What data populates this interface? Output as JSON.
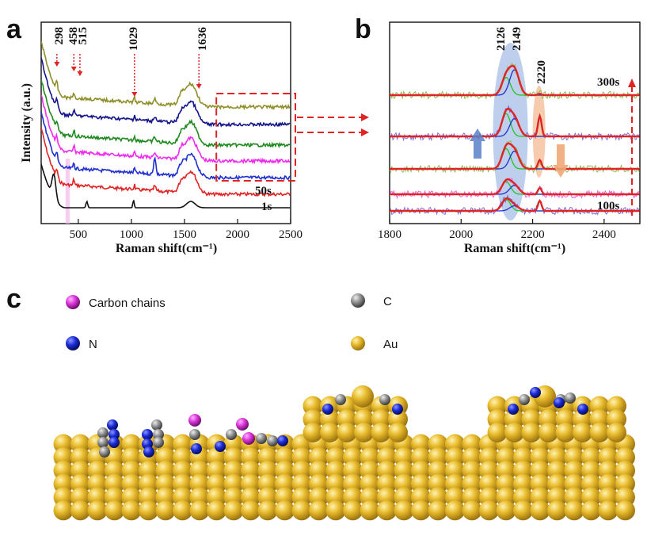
{
  "chart_data": [
    {
      "panel": "a",
      "type": "line",
      "xlabel": "Raman shift(cm⁻¹)",
      "ylabel": "Intensity (a.u.)",
      "xlim": [
        150,
        2500
      ],
      "xticks": [
        "500",
        "1000",
        "1500",
        "2000",
        "2500"
      ],
      "xtick_values": [
        500,
        1000,
        1500,
        2000,
        2500
      ],
      "peak_labels": [
        "298",
        "458",
        "515",
        "1029",
        "1636"
      ],
      "peak_positions": [
        298,
        458,
        515,
        1029,
        1636
      ],
      "series_labels": [
        {
          "text": "50s",
          "series": "red"
        },
        {
          "text": "1s",
          "series": "black"
        }
      ],
      "series": [
        {
          "name": "1s",
          "color": "#111111",
          "offset": 0
        },
        {
          "name": "red",
          "color": "#e02424",
          "offset": 1
        },
        {
          "name": "blue",
          "color": "#1f2fd0",
          "offset": 2
        },
        {
          "name": "magenta",
          "color": "#ee2bee",
          "offset": 3
        },
        {
          "name": "green",
          "color": "#1f8a1f",
          "offset": 4
        },
        {
          "name": "navy",
          "color": "#14148a",
          "offset": 5
        },
        {
          "name": "olive",
          "color": "#8f8f2a",
          "offset": 6
        }
      ],
      "highlight_band": [
        380,
        420
      ],
      "selection_box_x": [
        1800,
        2500
      ]
    },
    {
      "panel": "b",
      "type": "line",
      "xlabel": "Raman shift(cm⁻¹)",
      "xlim": [
        1800,
        2500
      ],
      "xticks": [
        "1800",
        "2000",
        "2200",
        "2400"
      ],
      "xtick_values": [
        1800,
        2000,
        2200,
        2400
      ],
      "peak_labels": [
        "2126",
        "2149",
        "2220"
      ],
      "peak_positions": [
        2126,
        2149,
        2220
      ],
      "series_labels": [
        {
          "text": "300s",
          "series": "top"
        },
        {
          "text": "100s",
          "series": "bottom"
        }
      ],
      "series": [
        {
          "name": "300s",
          "noise_color": "#8fbf5a",
          "peaks": {
            "2126": 0.7,
            "2149": 1.0,
            "2220": 0.05
          }
        },
        {
          "name": "trace-2",
          "noise_color": "#7b6fd6",
          "peaks": {
            "2126": 0.9,
            "2149": 0.7,
            "2220": 0.8
          }
        },
        {
          "name": "trace-3",
          "noise_color": "#8fbf5a",
          "peaks": {
            "2126": 0.8,
            "2149": 0.7,
            "2220": 0.35
          }
        },
        {
          "name": "trace-4",
          "noise_color": "#e860e0",
          "peaks": {
            "2126": 0.5,
            "2149": 0.35,
            "2220": 0.25
          }
        },
        {
          "name": "100s",
          "noise_color": "#7b6fd6",
          "peaks": {
            "2126": 0.45,
            "2149": 0.2,
            "2220": 0.4
          }
        }
      ],
      "fit_colors": {
        "total": "#e02424",
        "peak_2126": "#22c422",
        "peak_2149": "#1f2fd0"
      },
      "arrows": [
        {
          "meaning": "2149 increase",
          "color": "#5a80c8"
        },
        {
          "meaning": "2220 decrease",
          "color": "#f0a878"
        }
      ]
    }
  ],
  "panel_c": {
    "letter": "c",
    "legend": [
      {
        "label": "Carbon chains",
        "color": "#d933d9"
      },
      {
        "label": "C",
        "color": "#8a8a8a"
      },
      {
        "label": "N",
        "color": "#1a2bd6"
      },
      {
        "label": "Au",
        "color": "#e6b82e"
      }
    ]
  },
  "panel_letters": {
    "a": "a",
    "b": "b",
    "c": "c"
  }
}
